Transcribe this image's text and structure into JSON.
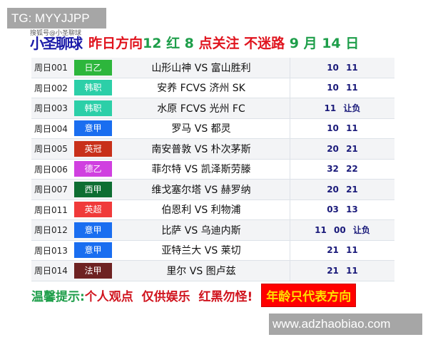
{
  "watermark_top": "TG: MYYJJPP",
  "watermark_bottom": "www.adzhaobiao.com",
  "header": {
    "logo": "小圣聊球",
    "logo_overlay": "搜狐号@小圣聊球",
    "part1": "昨日方向 ",
    "part2": "12 红 8",
    "part3": " 点关注 不迷路 ",
    "part4": "9 月 14 日"
  },
  "rows": [
    {
      "id": "周日001",
      "league": "日乙",
      "color": "#2db63c",
      "match": "山形山神 VS 富山胜利",
      "result": "10 11"
    },
    {
      "id": "周日002",
      "league": "韩职",
      "color": "#2ccfa8",
      "match": "安养 FCVS 济州 SK",
      "result": "10 11"
    },
    {
      "id": "周日003",
      "league": "韩职",
      "color": "#2ccfa8",
      "match": "水原 FCVS 光州 FC",
      "result": "11 让负"
    },
    {
      "id": "周日004",
      "league": "意甲",
      "color": "#1a6ef0",
      "match": "罗马 VS 都灵",
      "result": "10 11"
    },
    {
      "id": "周日005",
      "league": "英冠",
      "color": "#c8301a",
      "match": "南安普敦 VS 朴次茅斯",
      "result": "20 21"
    },
    {
      "id": "周日006",
      "league": "德乙",
      "color": "#d040e0",
      "match": "菲尔特 VS 凯泽斯劳滕",
      "result": "32 22"
    },
    {
      "id": "周日007",
      "league": "西甲",
      "color": "#0e6e32",
      "match": "维戈塞尔塔 VS 赫罗纳",
      "result": "20 21"
    },
    {
      "id": "周日011",
      "league": "英超",
      "color": "#f03a3a",
      "match": "伯恩利 VS 利物浦",
      "result": "03 13"
    },
    {
      "id": "周日012",
      "league": "意甲",
      "color": "#1a6ef0",
      "match": "比萨 VS 乌迪内斯",
      "result": "11 00 让负"
    },
    {
      "id": "周日013",
      "league": "意甲",
      "color": "#1a6ef0",
      "match": "亚特兰大 VS 莱切",
      "result": "21 11"
    },
    {
      "id": "周日014",
      "league": "法甲",
      "color": "#6e2222",
      "match": "里尔 VS 图卢兹",
      "result": "21 11"
    }
  ],
  "footer": {
    "tip_label": "温馨提示:",
    "tip_text": "个人观点  仅供娱乐  红黑勿怪!",
    "badge": "年龄只代表方向"
  }
}
